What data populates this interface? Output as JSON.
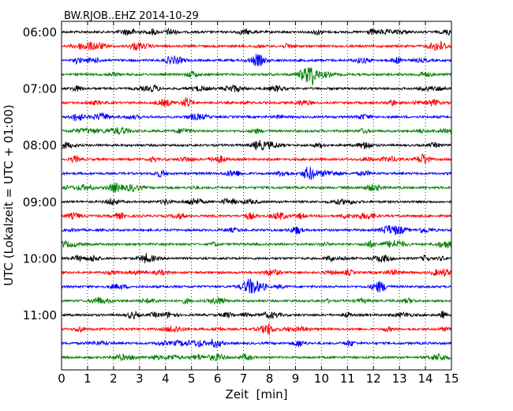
{
  "chart_data": {
    "type": "line",
    "title": "BW.RJOB..EHZ 2014-10-29",
    "xlabel": "Zeit  [min]",
    "ylabel": "UTC (Lokalzeit = UTC + 01:00)",
    "xlim": [
      0,
      15
    ],
    "x_ticks": [
      "0",
      "1",
      "2",
      "3",
      "4",
      "5",
      "6",
      "7",
      "8",
      "9",
      "10",
      "11",
      "12",
      "13",
      "14",
      "15"
    ],
    "y_ticks": [
      "06:00",
      "07:00",
      "08:00",
      "09:00",
      "10:00",
      "11:00"
    ],
    "trace_minutes": 15,
    "trace_count": 24,
    "trace_colors": [
      "#000000",
      "#ff0000",
      "#0000ff",
      "#008000"
    ],
    "grid": "vertical dotted",
    "traces": [
      {
        "start": "06:00"
      },
      {
        "start": "06:15"
      },
      {
        "start": "06:30"
      },
      {
        "start": "06:45"
      },
      {
        "start": "07:00"
      },
      {
        "start": "07:15"
      },
      {
        "start": "07:30"
      },
      {
        "start": "07:45"
      },
      {
        "start": "08:00"
      },
      {
        "start": "08:15"
      },
      {
        "start": "08:30"
      },
      {
        "start": "08:45"
      },
      {
        "start": "09:00"
      },
      {
        "start": "09:15"
      },
      {
        "start": "09:30"
      },
      {
        "start": "09:45"
      },
      {
        "start": "10:00"
      },
      {
        "start": "10:15"
      },
      {
        "start": "10:30"
      },
      {
        "start": "10:45"
      },
      {
        "start": "11:00"
      },
      {
        "start": "11:15"
      },
      {
        "start": "11:30"
      },
      {
        "start": "11:45"
      }
    ]
  }
}
